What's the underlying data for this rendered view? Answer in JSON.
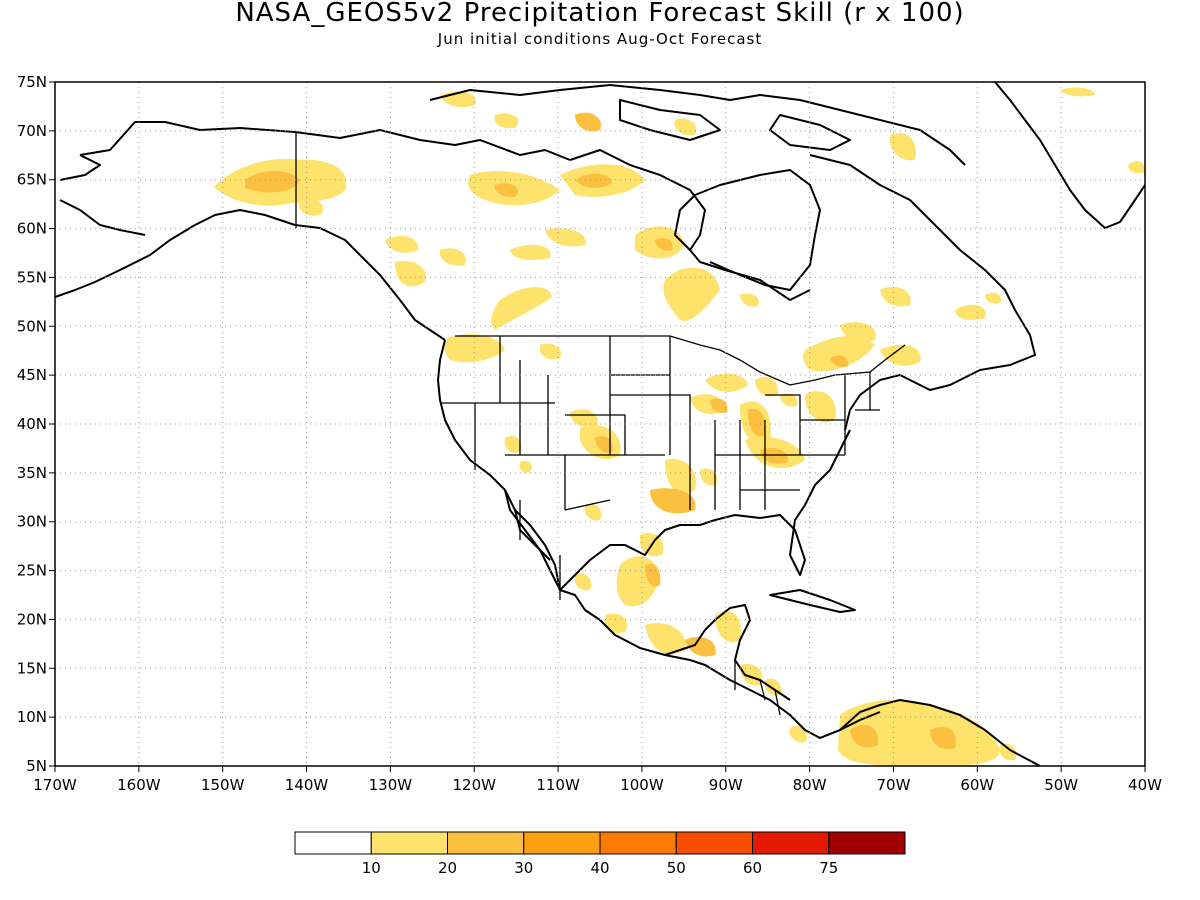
{
  "title": "NASA_GEOS5v2 Precipitation Forecast Skill (r x 100)",
  "subtitle": "Jun initial conditions  Aug-Oct Forecast",
  "map": {
    "lon_range": [
      -170,
      -40
    ],
    "lat_range": [
      5,
      75
    ],
    "grid": "dotted",
    "lat_labels": [
      "5N",
      "10N",
      "15N",
      "20N",
      "25N",
      "30N",
      "35N",
      "40N",
      "45N",
      "50N",
      "55N",
      "60N",
      "65N",
      "70N",
      "75N"
    ],
    "lon_labels": [
      "170W",
      "160W",
      "150W",
      "140W",
      "130W",
      "120W",
      "110W",
      "100W",
      "90W",
      "80W",
      "70W",
      "60W",
      "50W",
      "40W"
    ]
  },
  "legend": {
    "labels": [
      "10",
      "20",
      "30",
      "40",
      "50",
      "60",
      "75"
    ],
    "colors": [
      "#ffffff",
      "#fde26b",
      "#fcc040",
      "#fba010",
      "#fb7a00",
      "#f84c00",
      "#e41a00",
      "#c00000",
      "#a00000"
    ]
  },
  "skill_patches": [
    {
      "region": "Alaska interior",
      "level": 2
    },
    {
      "region": "Yukon",
      "level": 1
    },
    {
      "region": "Northwest Territories",
      "level": 2
    },
    {
      "region": "Nunavut",
      "level": 1
    },
    {
      "region": "Hudson Bay south",
      "level": 1
    },
    {
      "region": "Pacific Northwest",
      "level": 1
    },
    {
      "region": "Colorado / New Mexico",
      "level": 2
    },
    {
      "region": "Oklahoma / Texas",
      "level": 2
    },
    {
      "region": "Ohio Valley",
      "level": 2
    },
    {
      "region": "Great Lakes",
      "level": 2
    },
    {
      "region": "Northeast US / Quebec",
      "level": 1
    },
    {
      "region": "Eastern Mexico",
      "level": 2
    },
    {
      "region": "Southern Mexico",
      "level": 1
    },
    {
      "region": "Central America",
      "level": 1
    },
    {
      "region": "Colombia / Venezuela",
      "level": 1
    },
    {
      "region": "Greenland coast",
      "level": 1
    }
  ]
}
